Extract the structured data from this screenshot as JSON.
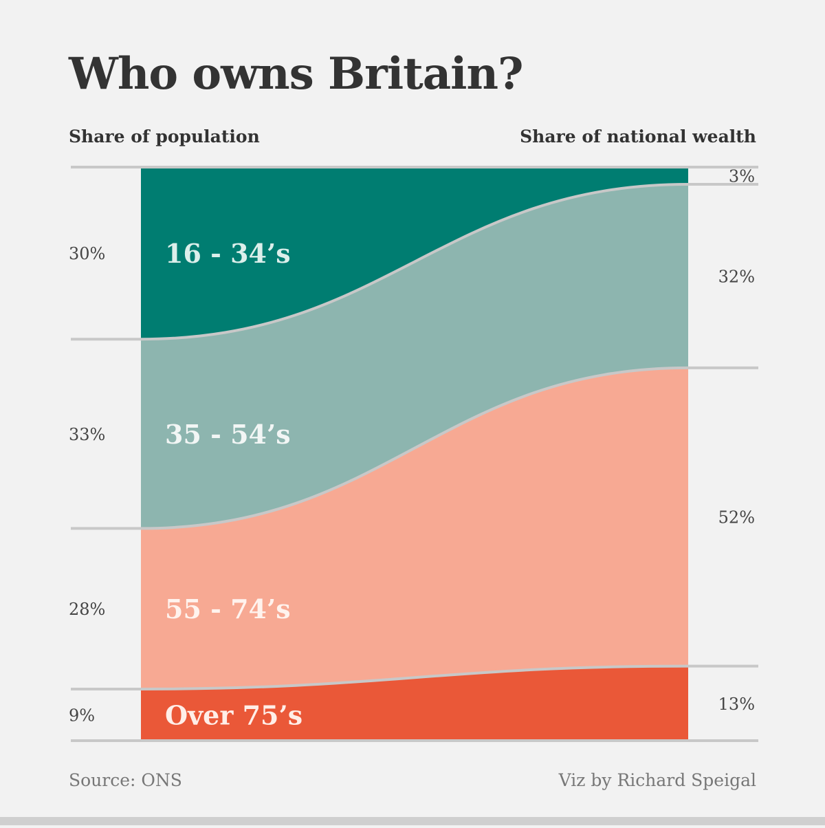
{
  "title": "Who owns Britain?",
  "left_heading": "Share of population",
  "right_heading": "Share of national wealth",
  "source": "Source: ONS",
  "credit": "Viz by Richard Speigal",
  "chart_data": {
    "type": "area",
    "x": [
      "Share of population",
      "Share of national wealth"
    ],
    "series": [
      {
        "name": "16 - 34’s",
        "values": [
          30,
          3
        ],
        "color": "#007d71",
        "label_color": "#dcefeb"
      },
      {
        "name": "35 - 54’s",
        "values": [
          33,
          32
        ],
        "color": "#8db5af",
        "label_color": "#f2f6f5"
      },
      {
        "name": "55 - 74’s",
        "values": [
          28,
          52
        ],
        "color": "#f7a993",
        "label_color": "#fff3ee"
      },
      {
        "name": "Over 75’s",
        "values": [
          9,
          13
        ],
        "color": "#ea5838",
        "label_color": "#ffeee8"
      }
    ],
    "left_labels": [
      "30%",
      "33%",
      "28%",
      "9%"
    ],
    "right_labels": [
      "3%",
      "32%",
      "52%",
      "13%"
    ],
    "separator_color": "#c8c8c8"
  }
}
